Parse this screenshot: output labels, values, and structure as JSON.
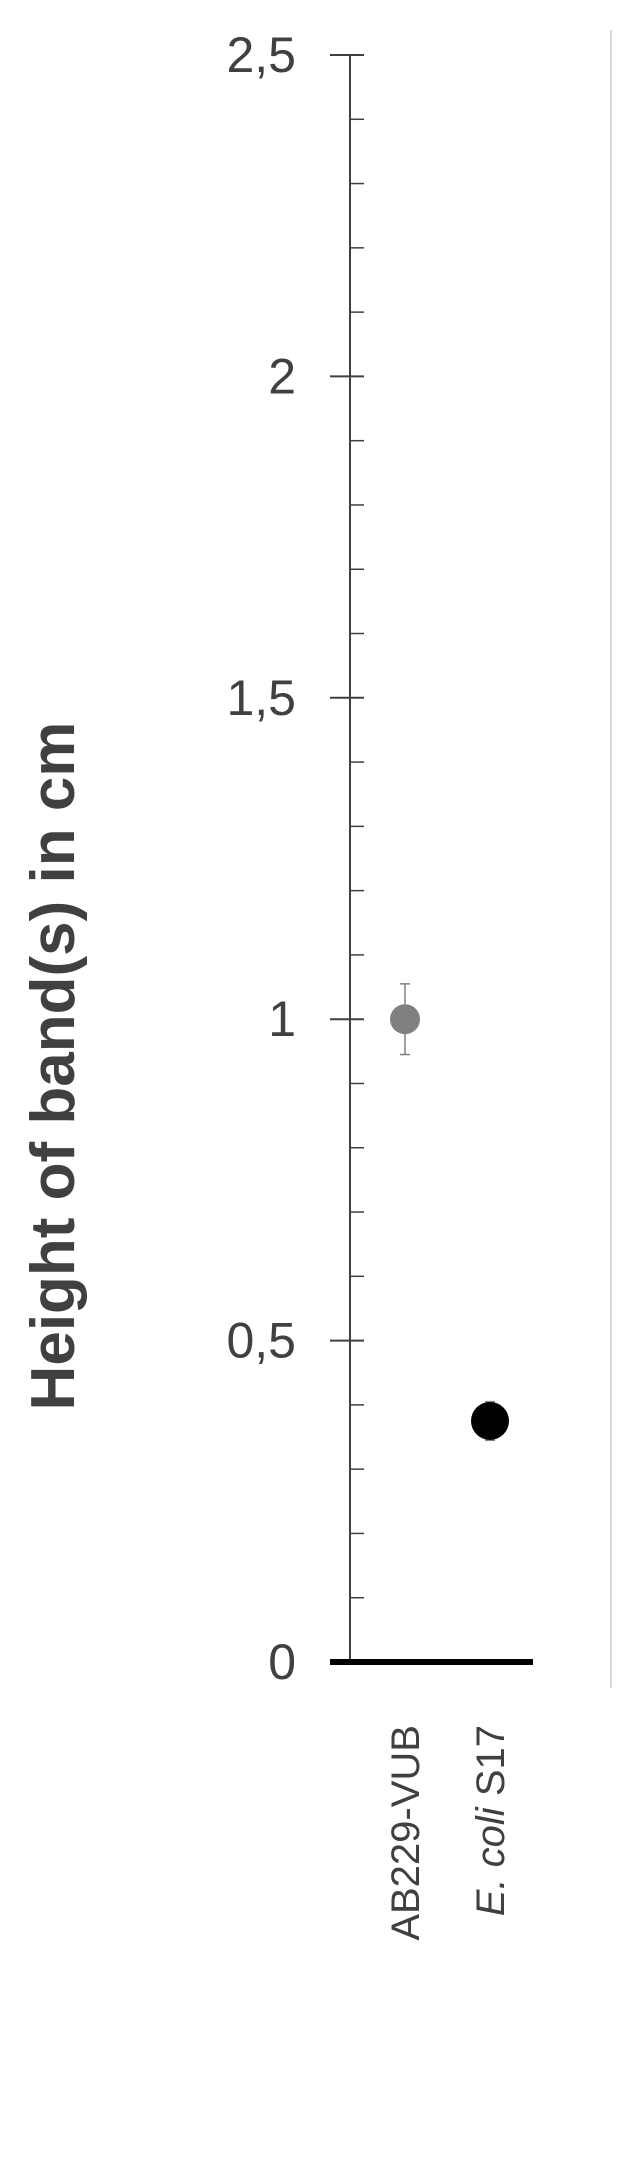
{
  "chart_data": {
    "type": "scatter",
    "ylabel": "Height of band(s) in cm",
    "xlabel": "",
    "ylim": [
      0,
      2.5
    ],
    "major_ticks": [
      0,
      0.5,
      1,
      1.5,
      2,
      2.5
    ],
    "major_tick_labels": [
      "0",
      "0,5",
      "1",
      "1,5",
      "2",
      "2,5"
    ],
    "minor_tick_step": 0.1,
    "grid": false,
    "categories": [
      {
        "label": "AB229-VUB",
        "italic_prefix": "",
        "rest": "AB229-VUB"
      },
      {
        "label": "E. coli S17",
        "italic_prefix": "E. coli",
        "rest": " S17"
      }
    ],
    "points": [
      {
        "category": "AB229-VUB",
        "value": 1.0,
        "error": 0.055,
        "color": "#808080"
      },
      {
        "category": "E. coli S17",
        "value": 0.375,
        "error": 0.03,
        "color": "#000000"
      }
    ],
    "colors": {
      "axis": "#404040",
      "baseline": "#000000",
      "text": "#404040",
      "frame": "#d9d9d9"
    }
  }
}
